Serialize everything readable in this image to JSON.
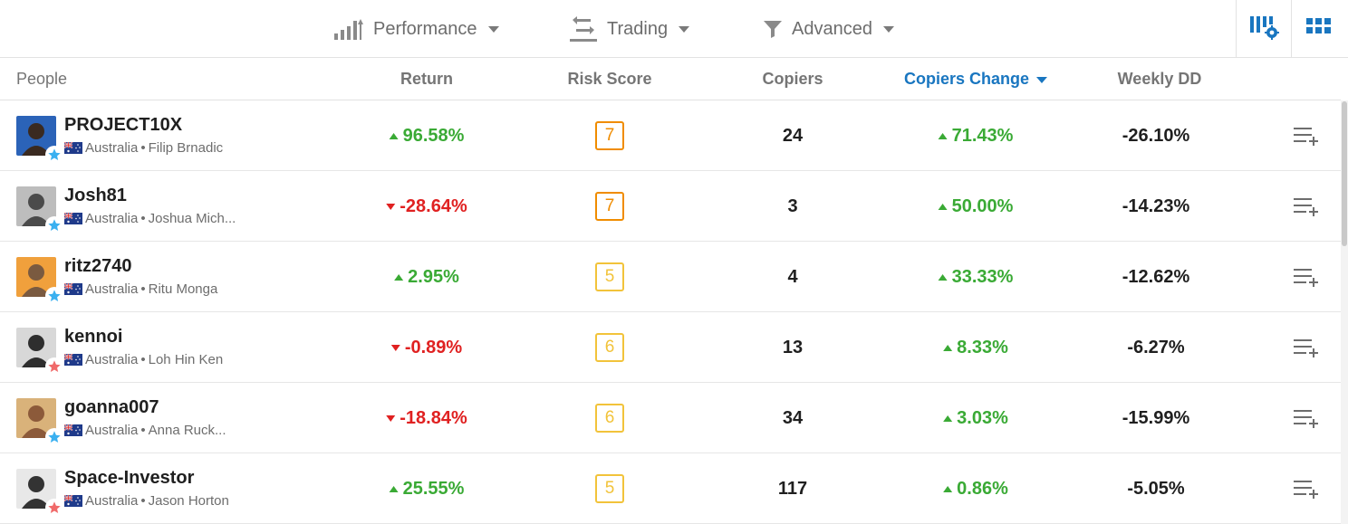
{
  "filters": [
    {
      "label": "Performance",
      "icon": "bar-chart-icon"
    },
    {
      "label": "Trading",
      "icon": "swap-arrows-icon"
    },
    {
      "label": "Advanced",
      "icon": "funnel-icon"
    }
  ],
  "view_buttons": [
    {
      "icon": "column-settings-icon"
    },
    {
      "icon": "grid-view-icon"
    }
  ],
  "columns": {
    "people": "People",
    "return": "Return",
    "risk_score": "Risk Score",
    "copiers": "Copiers",
    "copiers_change": "Copiers Change",
    "weekly_dd": "Weekly DD"
  },
  "sorted_column": "copiers_change",
  "colors": {
    "positive": "#3aaa35",
    "negative": "#e02121",
    "risk_high": "#f08c00",
    "risk_mid": "#f2c33a",
    "accent": "#1976c0",
    "star_blue": "#3ab0f0",
    "star_red": "#f06a6a"
  },
  "rows": [
    {
      "username": "PROJECT10X",
      "country": "Australia",
      "sep": "•",
      "name": "Filip Brnadic",
      "star": "blue",
      "return": "96.58%",
      "return_dir": "up",
      "risk": "7",
      "copiers": "24",
      "copiers_change": "71.43%",
      "change_dir": "up",
      "weekly_dd": "-26.10%"
    },
    {
      "username": "Josh81",
      "country": "Australia",
      "sep": "•",
      "name": "Joshua Mich...",
      "star": "blue",
      "return": "-28.64%",
      "return_dir": "down",
      "risk": "7",
      "copiers": "3",
      "copiers_change": "50.00%",
      "change_dir": "up",
      "weekly_dd": "-14.23%"
    },
    {
      "username": "ritz2740",
      "country": "Australia",
      "sep": "•",
      "name": "Ritu Monga",
      "star": "blue",
      "return": "2.95%",
      "return_dir": "up",
      "risk": "5",
      "copiers": "4",
      "copiers_change": "33.33%",
      "change_dir": "up",
      "weekly_dd": "-12.62%"
    },
    {
      "username": "kennoi",
      "country": "Australia",
      "sep": "•",
      "name": "Loh Hin Ken",
      "star": "red",
      "return": "-0.89%",
      "return_dir": "down",
      "risk": "6",
      "copiers": "13",
      "copiers_change": "8.33%",
      "change_dir": "up",
      "weekly_dd": "-6.27%"
    },
    {
      "username": "goanna007",
      "country": "Australia",
      "sep": "•",
      "name": "Anna Ruck...",
      "star": "blue",
      "return": "-18.84%",
      "return_dir": "down",
      "risk": "6",
      "copiers": "34",
      "copiers_change": "3.03%",
      "change_dir": "up",
      "weekly_dd": "-15.99%"
    },
    {
      "username": "Space-Investor",
      "country": "Australia",
      "sep": "•",
      "name": "Jason Horton",
      "star": "red",
      "return": "25.55%",
      "return_dir": "up",
      "risk": "5",
      "copiers": "117",
      "copiers_change": "0.86%",
      "change_dir": "up",
      "weekly_dd": "-5.05%"
    }
  ]
}
